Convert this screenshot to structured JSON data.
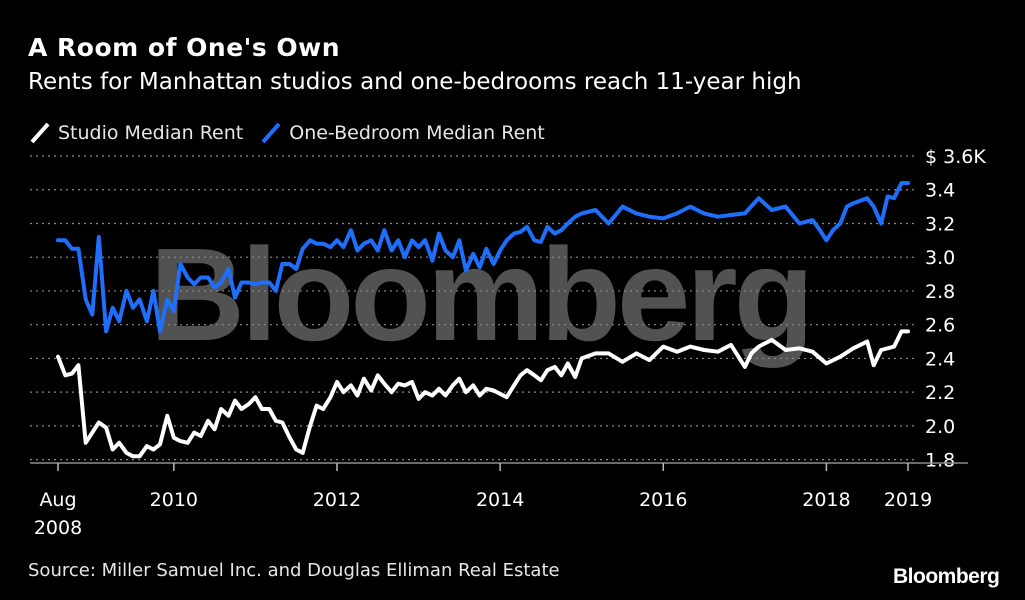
{
  "title": "A Room of One's Own",
  "subtitle": "Rents for Manhattan studios and one-bedrooms reach 11-year high",
  "watermark": "Bloomberg",
  "source": "Source: Miller Samuel Inc. and Douglas Elliman Real Estate",
  "brand": "Bloomberg",
  "colors": {
    "studio": "#ffffff",
    "one_bedroom": "#1f6fff",
    "background": "#000000",
    "grid": "#8c8c8c"
  },
  "chart_data": {
    "type": "line",
    "title": "A Room of One's Own",
    "subtitle": "Rents for Manhattan studios and one-bedrooms reach 11-year high",
    "xlabel": "",
    "ylabel": "",
    "x_unit": "year (decimal)",
    "xlim": [
      2008.58,
      2019.0
    ],
    "ylim": [
      1.78,
      3.6
    ],
    "yticks": [
      1.8,
      2.0,
      2.2,
      2.4,
      2.6,
      2.8,
      3.0,
      3.2,
      3.4
    ],
    "ytick_labels": [
      "1.8",
      "2.0",
      "2.2",
      "2.4",
      "2.6",
      "2.8",
      "3.0",
      "3.2",
      "3.4"
    ],
    "y_top_label": "$ 3.6K",
    "xticks": [
      {
        "value": 2008.58,
        "label": "Aug",
        "label2": "2008"
      },
      {
        "value": 2010,
        "label": "2010"
      },
      {
        "value": 2012,
        "label": "2012"
      },
      {
        "value": 2014,
        "label": "2014"
      },
      {
        "value": 2016,
        "label": "2016"
      },
      {
        "value": 2018,
        "label": "2018"
      },
      {
        "value": 2019,
        "label": "2019"
      }
    ],
    "legend": [
      "Studio Median Rent",
      "One-Bedroom Median Rent"
    ],
    "legend_position": "top-left",
    "grid": "horizontal dotted",
    "series": [
      {
        "name": "Studio Median Rent",
        "color": "#ffffff",
        "x": [
          2008.58,
          2008.67,
          2008.75,
          2008.83,
          2008.92,
          2009.0,
          2009.08,
          2009.17,
          2009.25,
          2009.33,
          2009.42,
          2009.5,
          2009.58,
          2009.67,
          2009.75,
          2009.83,
          2009.92,
          2010.0,
          2010.08,
          2010.17,
          2010.25,
          2010.33,
          2010.42,
          2010.5,
          2010.58,
          2010.67,
          2010.75,
          2010.83,
          2010.92,
          2011.0,
          2011.08,
          2011.17,
          2011.25,
          2011.33,
          2011.42,
          2011.5,
          2011.58,
          2011.67,
          2011.75,
          2011.83,
          2011.92,
          2012.0,
          2012.08,
          2012.17,
          2012.25,
          2012.33,
          2012.42,
          2012.5,
          2012.58,
          2012.67,
          2012.75,
          2012.83,
          2012.92,
          2013.0,
          2013.08,
          2013.17,
          2013.25,
          2013.33,
          2013.42,
          2013.5,
          2013.58,
          2013.67,
          2013.75,
          2013.83,
          2013.92,
          2014.0,
          2014.08,
          2014.17,
          2014.25,
          2014.33,
          2014.42,
          2014.5,
          2014.58,
          2014.67,
          2014.75,
          2014.83,
          2014.92,
          2015.0,
          2015.17,
          2015.33,
          2015.5,
          2015.67,
          2015.83,
          2016.0,
          2016.17,
          2016.33,
          2016.5,
          2016.67,
          2016.83,
          2017.0,
          2017.08,
          2017.17,
          2017.33,
          2017.5,
          2017.67,
          2017.83,
          2018.0,
          2018.17,
          2018.33,
          2018.5,
          2018.58,
          2018.67,
          2018.83,
          2018.92,
          2019.0
        ],
        "values": [
          2.41,
          2.3,
          2.31,
          2.36,
          1.9,
          1.96,
          2.02,
          1.99,
          1.86,
          1.9,
          1.84,
          1.82,
          1.82,
          1.88,
          1.86,
          1.89,
          2.06,
          1.93,
          1.91,
          1.9,
          1.96,
          1.94,
          2.03,
          1.98,
          2.1,
          2.06,
          2.15,
          2.1,
          2.13,
          2.17,
          2.1,
          2.1,
          2.03,
          2.02,
          1.93,
          1.86,
          1.84,
          2.0,
          2.12,
          2.1,
          2.17,
          2.26,
          2.2,
          2.24,
          2.18,
          2.28,
          2.21,
          2.3,
          2.25,
          2.2,
          2.25,
          2.24,
          2.26,
          2.16,
          2.2,
          2.18,
          2.22,
          2.18,
          2.24,
          2.28,
          2.2,
          2.24,
          2.18,
          2.22,
          2.21,
          2.19,
          2.17,
          2.24,
          2.3,
          2.33,
          2.3,
          2.27,
          2.33,
          2.35,
          2.3,
          2.37,
          2.29,
          2.4,
          2.43,
          2.43,
          2.38,
          2.43,
          2.39,
          2.47,
          2.44,
          2.47,
          2.45,
          2.44,
          2.48,
          2.35,
          2.43,
          2.47,
          2.51,
          2.45,
          2.46,
          2.44,
          2.37,
          2.41,
          2.46,
          2.5,
          2.36,
          2.45,
          2.47,
          2.56,
          2.56
        ]
      },
      {
        "name": "One-Bedroom Median Rent",
        "color": "#1f6fff",
        "x": [
          2008.58,
          2008.67,
          2008.75,
          2008.83,
          2008.92,
          2009.0,
          2009.08,
          2009.17,
          2009.25,
          2009.33,
          2009.42,
          2009.5,
          2009.58,
          2009.67,
          2009.75,
          2009.83,
          2009.92,
          2010.0,
          2010.08,
          2010.17,
          2010.25,
          2010.33,
          2010.42,
          2010.5,
          2010.58,
          2010.67,
          2010.75,
          2010.83,
          2010.92,
          2011.0,
          2011.08,
          2011.17,
          2011.25,
          2011.33,
          2011.42,
          2011.5,
          2011.58,
          2011.67,
          2011.75,
          2011.83,
          2011.92,
          2012.0,
          2012.08,
          2012.17,
          2012.25,
          2012.33,
          2012.42,
          2012.5,
          2012.58,
          2012.67,
          2012.75,
          2012.83,
          2012.92,
          2013.0,
          2013.08,
          2013.17,
          2013.25,
          2013.33,
          2013.42,
          2013.5,
          2013.58,
          2013.67,
          2013.75,
          2013.83,
          2013.92,
          2014.0,
          2014.08,
          2014.17,
          2014.25,
          2014.33,
          2014.42,
          2014.5,
          2014.58,
          2014.67,
          2014.75,
          2014.83,
          2014.92,
          2015.0,
          2015.17,
          2015.33,
          2015.5,
          2015.67,
          2015.83,
          2016.0,
          2016.17,
          2016.33,
          2016.5,
          2016.67,
          2016.83,
          2017.0,
          2017.17,
          2017.33,
          2017.5,
          2017.67,
          2017.83,
          2017.92,
          2018.0,
          2018.08,
          2018.17,
          2018.25,
          2018.33,
          2018.5,
          2018.58,
          2018.67,
          2018.75,
          2018.83,
          2018.92,
          2019.0
        ],
        "values": [
          3.1,
          3.1,
          3.05,
          3.05,
          2.75,
          2.66,
          3.12,
          2.56,
          2.7,
          2.62,
          2.8,
          2.7,
          2.75,
          2.62,
          2.8,
          2.56,
          2.75,
          2.68,
          2.96,
          2.88,
          2.84,
          2.88,
          2.88,
          2.82,
          2.85,
          2.93,
          2.76,
          2.85,
          2.85,
          2.84,
          2.85,
          2.85,
          2.8,
          2.96,
          2.96,
          2.93,
          3.05,
          3.1,
          3.08,
          3.08,
          3.06,
          3.1,
          3.06,
          3.16,
          3.04,
          3.08,
          3.1,
          3.04,
          3.16,
          3.04,
          3.1,
          3.0,
          3.1,
          3.06,
          3.1,
          2.98,
          3.14,
          3.04,
          3.0,
          3.1,
          2.92,
          3.02,
          2.94,
          3.05,
          2.96,
          3.04,
          3.1,
          3.14,
          3.15,
          3.18,
          3.1,
          3.09,
          3.18,
          3.14,
          3.16,
          3.2,
          3.24,
          3.26,
          3.28,
          3.2,
          3.3,
          3.26,
          3.24,
          3.23,
          3.26,
          3.3,
          3.26,
          3.24,
          3.25,
          3.26,
          3.35,
          3.28,
          3.3,
          3.2,
          3.22,
          3.16,
          3.1,
          3.16,
          3.2,
          3.3,
          3.32,
          3.35,
          3.3,
          3.2,
          3.36,
          3.35,
          3.44,
          3.44
        ]
      }
    ]
  }
}
